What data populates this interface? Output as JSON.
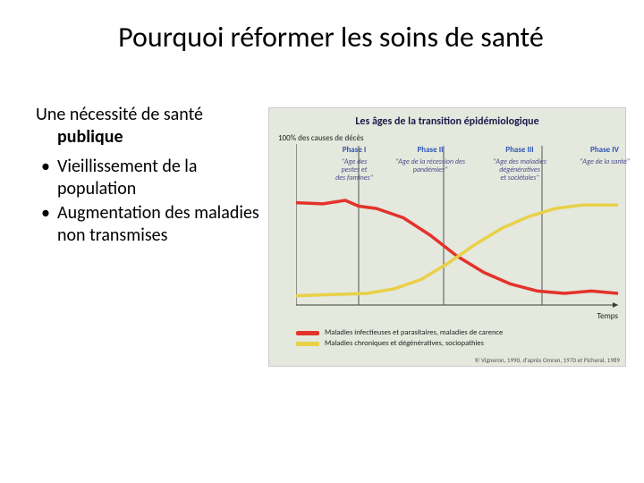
{
  "title": "Pourquoi réformer les soins de santé",
  "text": {
    "subtitle_part1": "Une nécessité de santé",
    "subtitle_part2": "publique",
    "bullets": [
      "Vieillissement de la population",
      "Augmentation des maladies non transmises"
    ]
  },
  "chart": {
    "type": "line",
    "title": "Les âges de la transition épidémiologique",
    "background_color": "#e4e8dd",
    "y_axis_label": "100% des causes de décès",
    "x_axis_label": "Temps",
    "ylim": [
      0,
      100
    ],
    "xlim": [
      0,
      360
    ],
    "axis_color": "#3a3a3a",
    "divider_color": "#555",
    "phase_dividers_x": [
      70,
      165,
      275
    ],
    "phases": [
      {
        "label": "Phase I",
        "desc": "\"Age des\\npestes et\\ndes famines\"",
        "x": 30,
        "w": 70
      },
      {
        "label": "Phase II",
        "desc": "\"Age de la récession des pandémies\"",
        "x": 100,
        "w": 100
      },
      {
        "label": "Phase III",
        "desc": "\"Age des maladies\\ndégénératives\\net sociétales\"",
        "x": 195,
        "w": 110
      },
      {
        "label": "Phase IV",
        "desc": "\"Age de la santé\"",
        "x": 305,
        "w": 80
      }
    ],
    "series": [
      {
        "name": "infectious",
        "color": "#e3322b",
        "stroke_width": 3.5,
        "points": [
          [
            0,
            88
          ],
          [
            30,
            87
          ],
          [
            55,
            90
          ],
          [
            70,
            85
          ],
          [
            90,
            83
          ],
          [
            120,
            75
          ],
          [
            150,
            60
          ],
          [
            180,
            42
          ],
          [
            210,
            28
          ],
          [
            240,
            18
          ],
          [
            270,
            12
          ],
          [
            300,
            10
          ],
          [
            330,
            12
          ],
          [
            360,
            10
          ]
        ]
      },
      {
        "name": "chronic",
        "color": "#e9d047",
        "stroke_width": 3.5,
        "points": [
          [
            0,
            8
          ],
          [
            40,
            9
          ],
          [
            80,
            10
          ],
          [
            110,
            14
          ],
          [
            140,
            22
          ],
          [
            170,
            36
          ],
          [
            200,
            52
          ],
          [
            230,
            66
          ],
          [
            260,
            76
          ],
          [
            290,
            83
          ],
          [
            320,
            86
          ],
          [
            360,
            86
          ]
        ]
      }
    ],
    "legend": [
      {
        "color": "#e3322b",
        "label": "Maladies infectieuses et parasitaires, maladies de carence"
      },
      {
        "color": "#e9d047",
        "label": "Maladies chroniques et dégénératives, sociopathies"
      }
    ],
    "citation": "© Vigneron, 1990, d'après Omran, 1970 et Picheral, 1989"
  }
}
